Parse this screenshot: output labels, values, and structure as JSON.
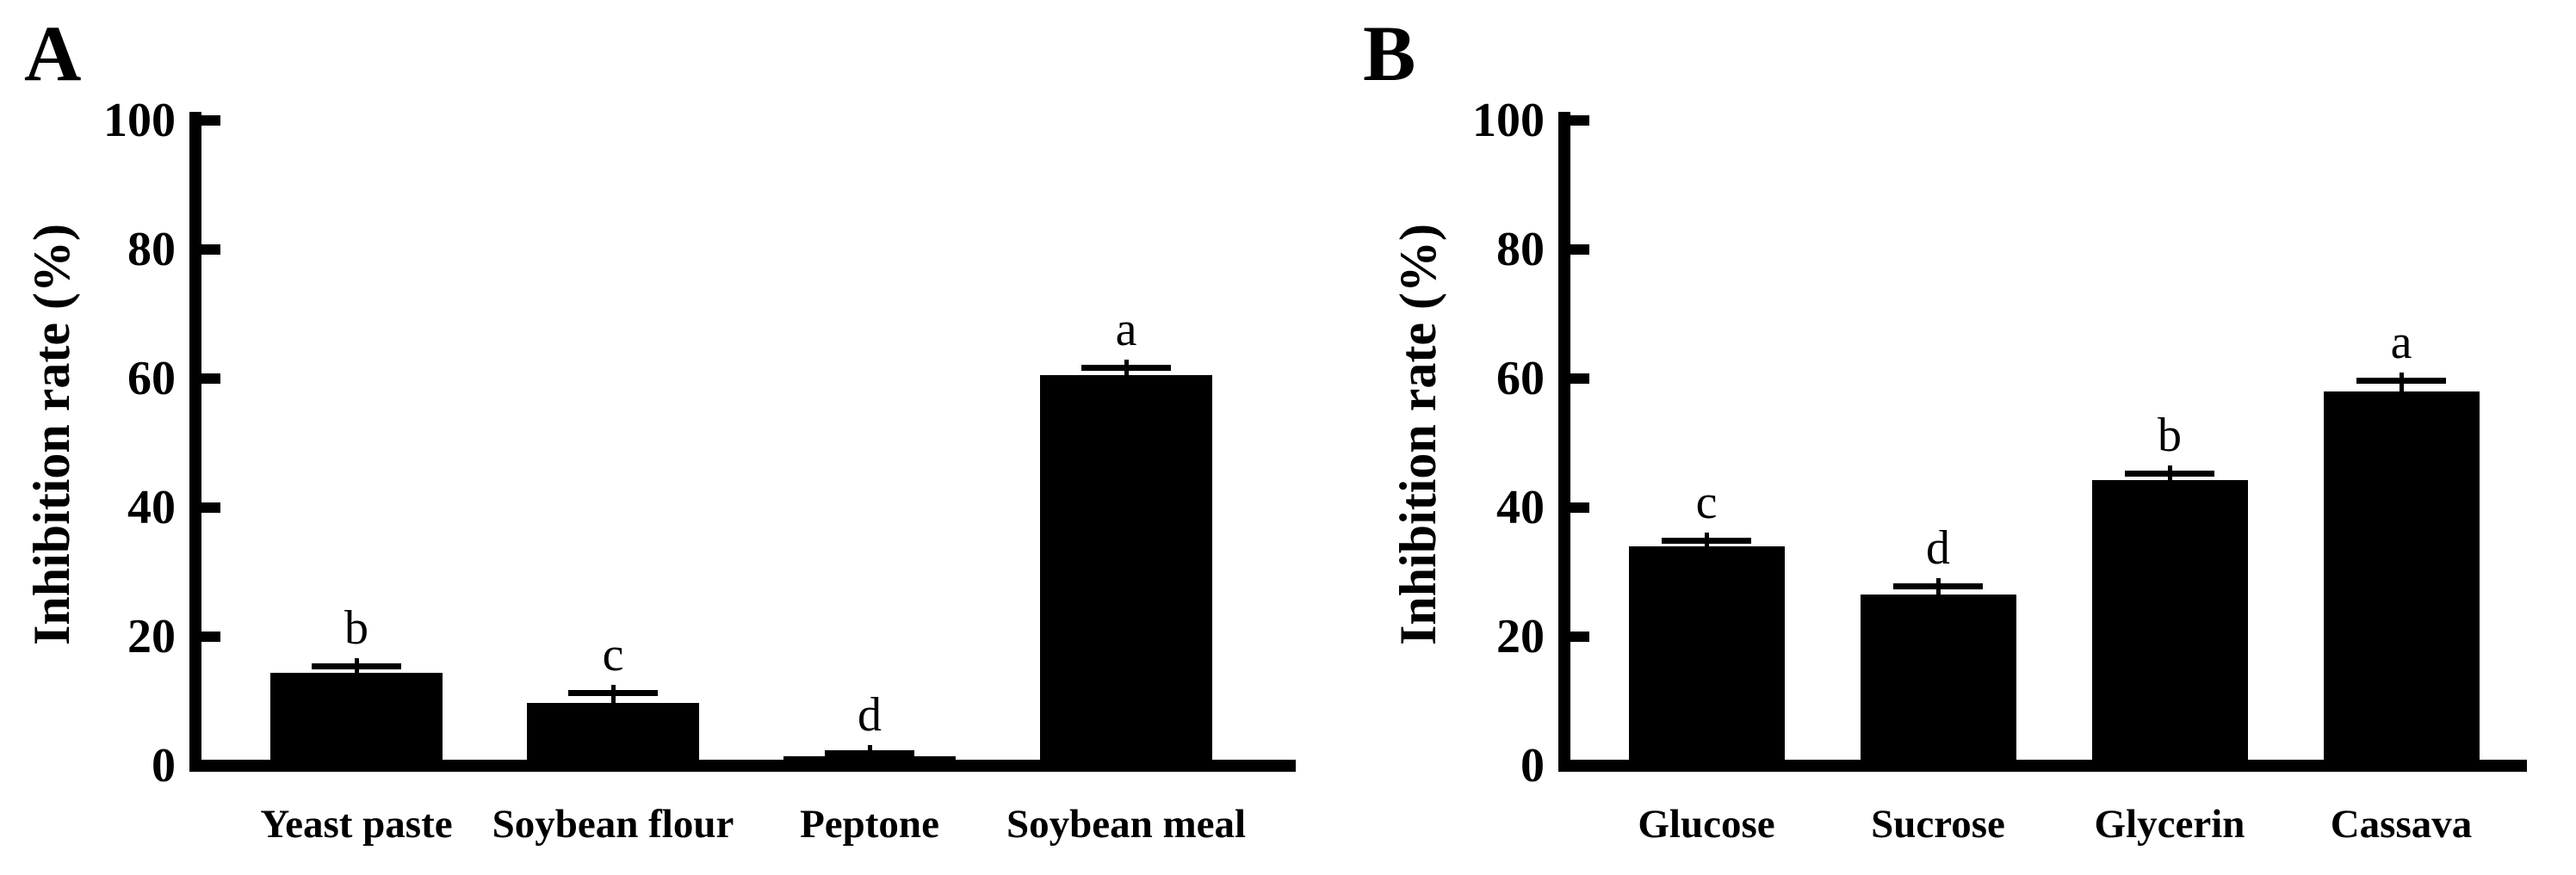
{
  "figure": {
    "background_color": "#ffffff",
    "ink_color": "#000000",
    "description": "Two-panel bar figure of inhibition rate by nitrogen source (A) and carbon source (B)"
  },
  "chart_data": [
    {
      "type": "bar",
      "panel_label": "A",
      "ylabel": "Inhibition rate (%)",
      "xlabel": "",
      "ylim": [
        0,
        100
      ],
      "yticks": [
        0,
        20,
        40,
        60,
        80,
        100
      ],
      "grid": false,
      "legend": null,
      "bar_color": "#000000",
      "categories": [
        "Yeast paste",
        "Soybean flour",
        "Peptone",
        "Soybean meal"
      ],
      "values": [
        14.4,
        9.8,
        1.5,
        60.5
      ],
      "errors": [
        1.1,
        1.5,
        0.5,
        1.3
      ],
      "sig_letters": [
        "b",
        "c",
        "d",
        "a"
      ]
    },
    {
      "type": "bar",
      "panel_label": "B",
      "ylabel": "Inhibition rate (%)",
      "xlabel": "",
      "ylim": [
        0,
        100
      ],
      "yticks": [
        0,
        20,
        40,
        60,
        80,
        100
      ],
      "grid": false,
      "legend": null,
      "bar_color": "#000000",
      "categories": [
        "Glucose",
        "Sucrose",
        "Glycerin",
        "Cassava"
      ],
      "values": [
        34.0,
        26.5,
        44.3,
        58.0
      ],
      "errors": [
        0.9,
        1.4,
        1.1,
        1.7
      ],
      "sig_letters": [
        "c",
        "d",
        "b",
        "a"
      ]
    }
  ]
}
